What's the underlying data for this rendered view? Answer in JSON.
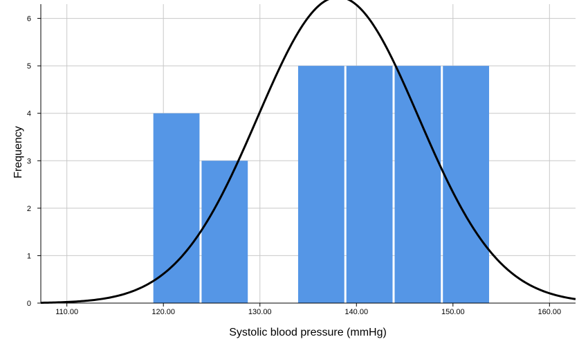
{
  "chart_data": {
    "type": "bar",
    "subtype": "histogram",
    "xlabel": "Systolic blood pressure (mmHg)",
    "ylabel": "Frequency",
    "xlim": [
      107.3,
      162.7
    ],
    "ylim": [
      0,
      6.3
    ],
    "x_ticks": [
      110,
      120,
      130,
      140,
      150,
      160
    ],
    "x_tick_labels": [
      "110.00",
      "120.00",
      "130.00",
      "140.00",
      "150.00",
      "160.00"
    ],
    "y_ticks": [
      0,
      1,
      2,
      3,
      4,
      5,
      6
    ],
    "y_tick_labels": [
      "0",
      "1",
      "2",
      "3",
      "4",
      "5",
      "6"
    ],
    "bins": [
      {
        "start": 118.85,
        "end": 123.85,
        "count": 4
      },
      {
        "start": 123.85,
        "end": 128.85,
        "count": 3
      },
      {
        "start": 128.85,
        "end": 133.85,
        "count": 0
      },
      {
        "start": 133.85,
        "end": 138.85,
        "count": 5
      },
      {
        "start": 138.85,
        "end": 143.85,
        "count": 5
      },
      {
        "start": 143.85,
        "end": 148.85,
        "count": 5
      },
      {
        "start": 148.85,
        "end": 153.85,
        "count": 5
      }
    ],
    "normal_curve": {
      "mean": 138.1,
      "sd": 8.35,
      "n": 27,
      "bin_width": 5
    },
    "grid": true,
    "bar_color": "#5596e6",
    "curve_color": "#000000"
  }
}
